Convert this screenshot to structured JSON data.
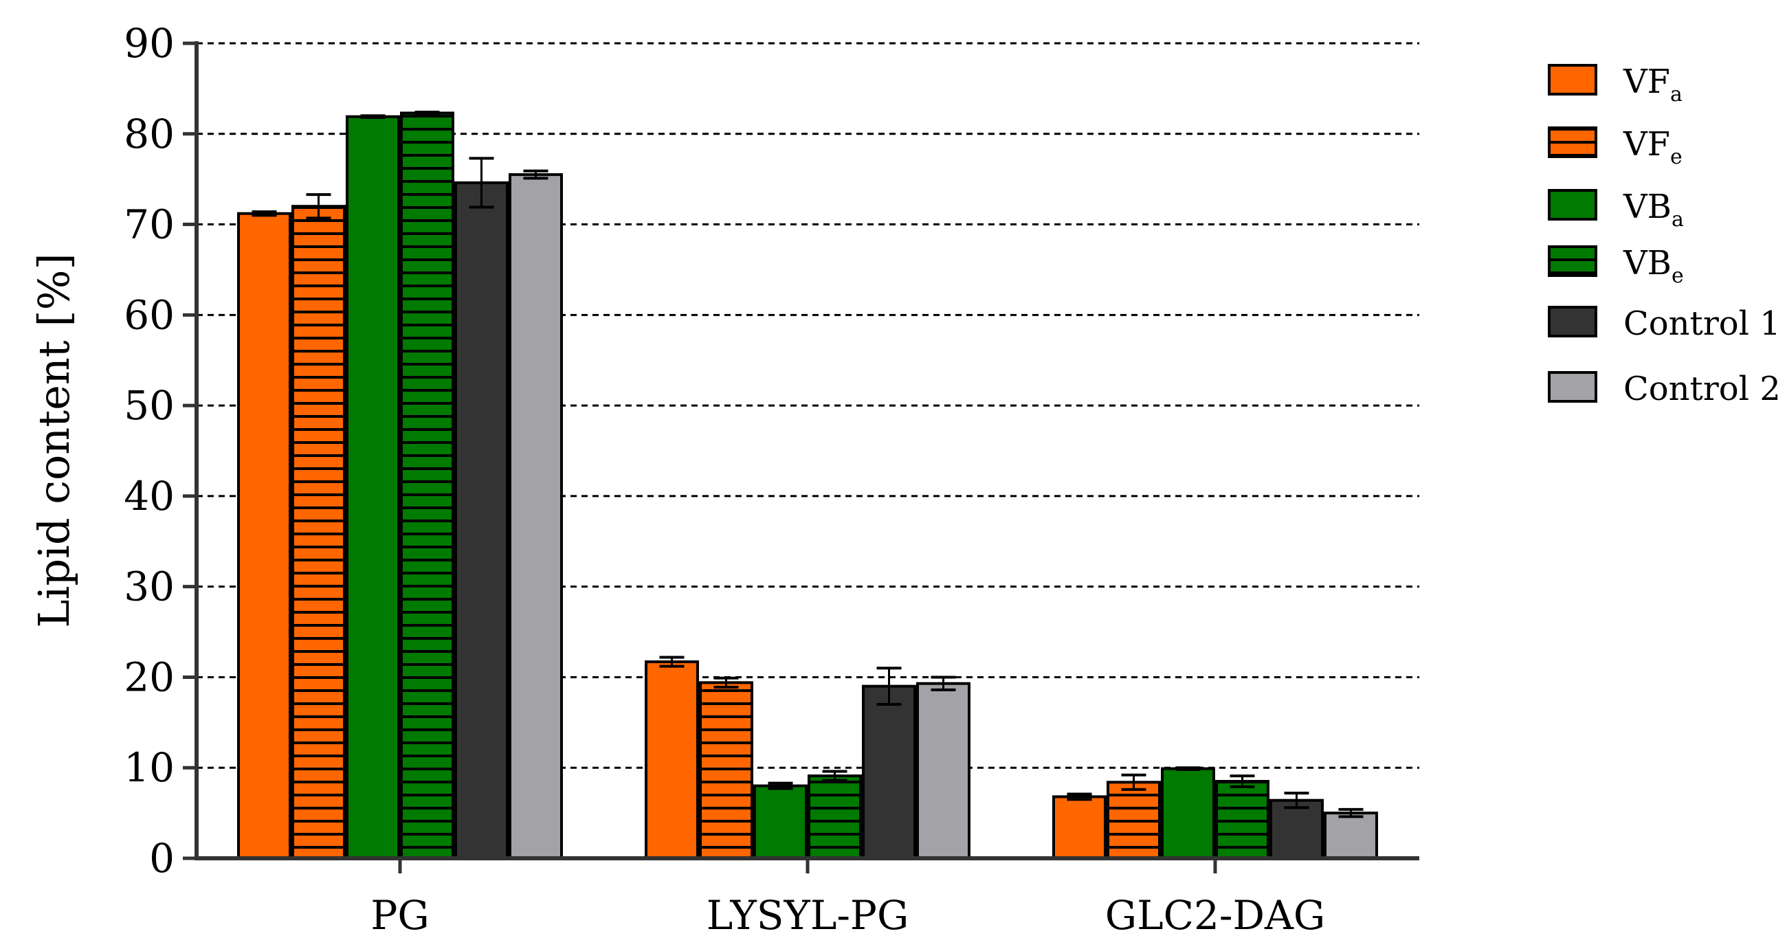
{
  "chart_data": {
    "type": "bar",
    "ylabel": "Lipid content [%]",
    "xlabel": "",
    "ylim": [
      0,
      90
    ],
    "yticks": [
      0,
      10,
      20,
      30,
      40,
      50,
      60,
      70,
      80,
      90
    ],
    "grid": "horizontal dashed",
    "legend_position": "right",
    "categories": [
      "PG",
      "LYSYL-PG",
      "GLC2-DAG"
    ],
    "series": [
      {
        "name": "VF",
        "subscript": "a",
        "color": "#ff6600",
        "hatched": false,
        "values": [
          71.2,
          21.7,
          6.8
        ],
        "errors": [
          0.2,
          0.5,
          0.3
        ]
      },
      {
        "name": "VF",
        "subscript": "e",
        "color": "#ff6600",
        "hatched": true,
        "values": [
          72.0,
          19.4,
          8.4
        ],
        "errors": [
          1.3,
          0.5,
          0.8
        ]
      },
      {
        "name": "VB",
        "subscript": "a",
        "color": "#007a00",
        "hatched": false,
        "values": [
          81.9,
          8.0,
          9.9
        ],
        "errors": [
          0.1,
          0.3,
          0.1
        ]
      },
      {
        "name": "VB",
        "subscript": "e",
        "color": "#007a00",
        "hatched": true,
        "values": [
          82.3,
          9.1,
          8.5
        ],
        "errors": [
          0.1,
          0.5,
          0.6
        ]
      },
      {
        "name": "Control 1",
        "subscript": "",
        "color": "#333333",
        "hatched": false,
        "values": [
          74.6,
          19.0,
          6.4
        ],
        "errors": [
          2.7,
          2.0,
          0.8
        ]
      },
      {
        "name": "Control 2",
        "subscript": "",
        "color": "#a3a3a7",
        "hatched": false,
        "values": [
          75.5,
          19.3,
          5.0
        ],
        "errors": [
          0.4,
          0.7,
          0.4
        ]
      }
    ]
  }
}
